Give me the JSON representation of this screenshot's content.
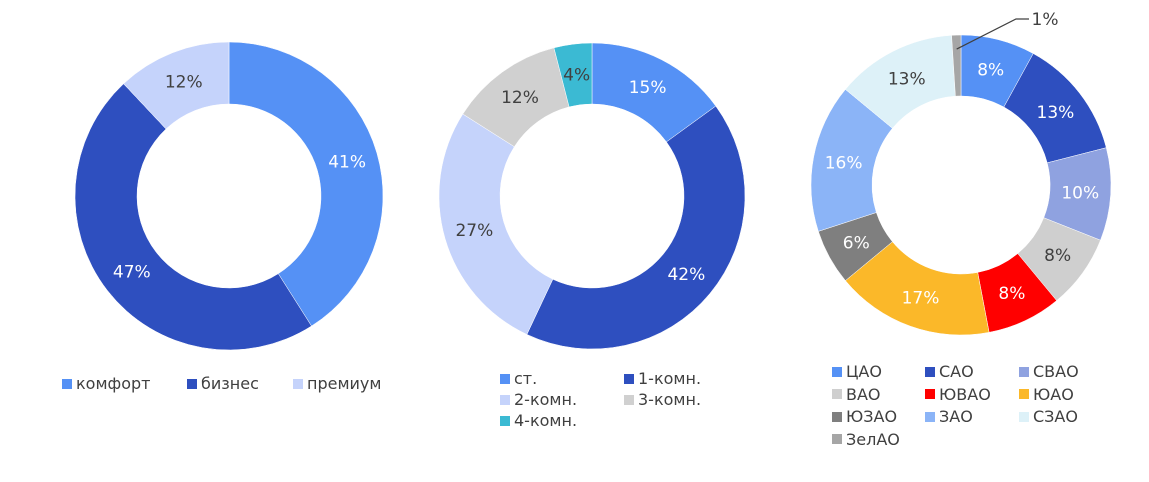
{
  "chart_data": [
    {
      "type": "pie",
      "variant": "donut",
      "categories": [
        "комфорт",
        "бизнес",
        "премиум"
      ],
      "values": [
        41,
        47,
        12
      ],
      "labels": [
        "41%",
        "47%",
        "12%"
      ],
      "colors": [
        "#5591f5",
        "#2e4fbf",
        "#c5d3fb"
      ],
      "label_colors": [
        "#ffffff",
        "#ffffff",
        "#404040"
      ],
      "legend": "bottom"
    },
    {
      "type": "pie",
      "variant": "donut",
      "categories": [
        "ст.",
        "1-комн.",
        "2-комн.",
        "3-комн.",
        "4-комн."
      ],
      "values": [
        15,
        42,
        27,
        12,
        4
      ],
      "labels": [
        "15%",
        "42%",
        "27%",
        "12%",
        "4%"
      ],
      "colors": [
        "#5591f5",
        "#2e4fbf",
        "#c5d3fb",
        "#d0d0d0",
        "#3bbad3"
      ],
      "label_colors": [
        "#ffffff",
        "#ffffff",
        "#404040",
        "#404040",
        "#404040"
      ],
      "legend": "bottom"
    },
    {
      "type": "pie",
      "variant": "donut",
      "categories": [
        "ЦАО",
        "САО",
        "СВАО",
        "ВАО",
        "ЮВАО",
        "ЮАО",
        "ЮЗАО",
        "ЗАО",
        "СЗАО",
        "ЗелАО"
      ],
      "values": [
        8,
        13,
        10,
        8,
        8,
        17,
        6,
        16,
        13,
        1
      ],
      "labels": [
        "8%",
        "13%",
        "10%",
        "8%",
        "8%",
        "17%",
        "6%",
        "16%",
        "13%",
        "1%"
      ],
      "colors": [
        "#5591f5",
        "#2e4fbf",
        "#8fa2e0",
        "#cfcfcf",
        "#ff0000",
        "#fbb829",
        "#7f7f7f",
        "#8bb4f7",
        "#ddf1f8",
        "#a6a6a6"
      ],
      "label_colors": [
        "#ffffff",
        "#ffffff",
        "#ffffff",
        "#404040",
        "#ffffff",
        "#ffffff",
        "#ffffff",
        "#ffffff",
        "#404040",
        "#404040"
      ],
      "legend": "bottom"
    }
  ]
}
